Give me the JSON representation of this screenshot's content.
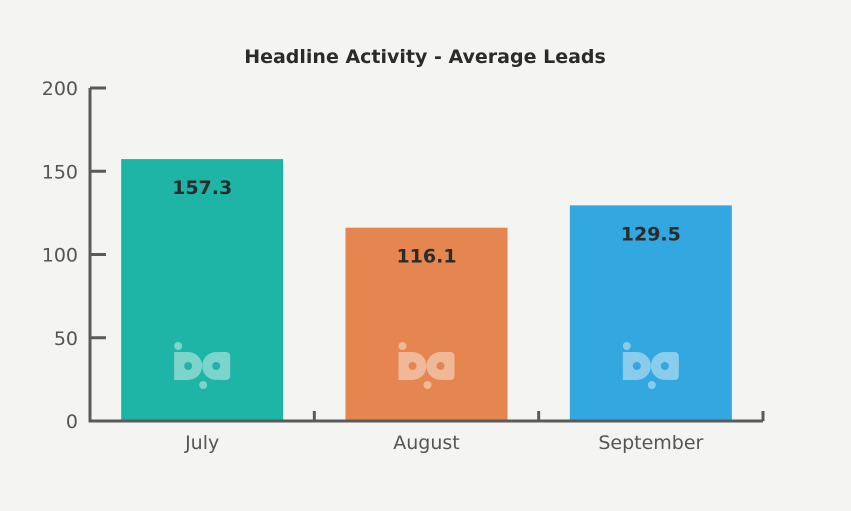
{
  "chart_data": {
    "type": "bar",
    "title": "Headline Activity - Average Leads",
    "xlabel": "",
    "ylabel": "",
    "categories": [
      "July",
      "August",
      "September"
    ],
    "values": [
      157.3,
      116.1,
      129.5
    ],
    "data_labels": [
      "157.3",
      "116.1",
      "129.5"
    ],
    "colors": [
      "#1eb5a6",
      "#e5854f",
      "#33a7df"
    ],
    "ylim": [
      0,
      200
    ],
    "yticks": [
      0,
      50,
      100,
      150,
      200
    ],
    "grid": false,
    "legend": "none",
    "watermark_icon": "bp-logo-icon"
  }
}
